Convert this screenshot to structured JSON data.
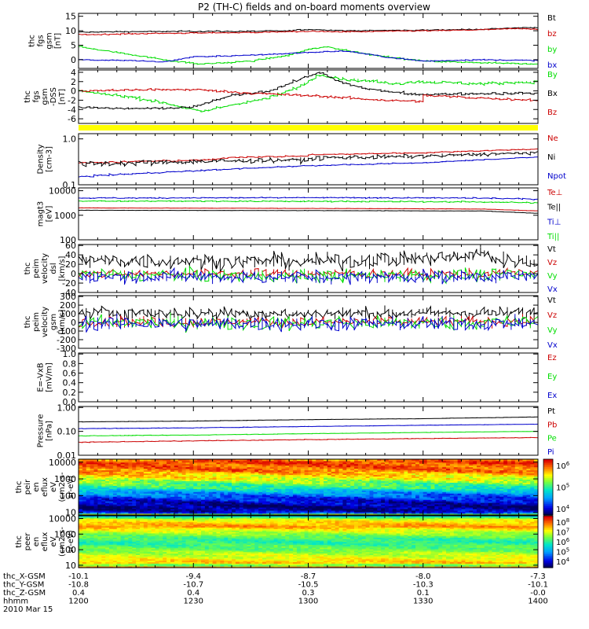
{
  "title": "P2 (TH-C) fields and on-board moments overview",
  "colors": {
    "black": "#000000",
    "red": "#cc0000",
    "green": "#00dd00",
    "blue": "#0000cc",
    "yellow": "#ffff00"
  },
  "chart_data": [
    {
      "type": "line",
      "ylabel": [
        "thc",
        "fgs",
        "gsm",
        "[nT]"
      ],
      "yscale": "linear",
      "ylim": [
        -3,
        16
      ],
      "ticks": [
        {
          "v": 15,
          "label": "15"
        },
        {
          "v": 10,
          "label": "10"
        },
        {
          "v": 5,
          "label": "5"
        },
        {
          "v": 0,
          "label": "0"
        }
      ],
      "series": [
        {
          "name": "Bt",
          "color": "#000000",
          "noise": 0.15,
          "x": [
            1200,
            1215,
            1230,
            1245,
            1255,
            1300,
            1310,
            1330,
            1345,
            1355,
            1400
          ],
          "y": [
            9.5,
            9.7,
            9.8,
            9.8,
            10,
            10.5,
            10,
            10.2,
            10.5,
            11,
            11
          ]
        },
        {
          "name": "bz",
          "color": "#cc0000",
          "noise": 0.15,
          "x": [
            1200,
            1215,
            1230,
            1245,
            1255,
            1300,
            1310,
            1330,
            1345,
            1355,
            1400
          ],
          "y": [
            8.6,
            9,
            9.2,
            9.4,
            9.7,
            9.8,
            9.6,
            10,
            10.3,
            10.8,
            10.5
          ]
        },
        {
          "name": "by",
          "color": "#00dd00",
          "noise": 0.2,
          "x": [
            1200,
            1205,
            1215,
            1225,
            1232,
            1245,
            1255,
            1300,
            1305,
            1315,
            1330,
            1345,
            1400
          ],
          "y": [
            4.5,
            3.5,
            1.5,
            -0.5,
            -1.5,
            -0.5,
            1.5,
            3.5,
            4.5,
            2,
            -0.5,
            -1,
            -1.5
          ]
        },
        {
          "name": "bx",
          "color": "#0000cc",
          "noise": 0.15,
          "x": [
            1200,
            1215,
            1222,
            1230,
            1245,
            1300,
            1310,
            1320,
            1330,
            1345,
            1400
          ],
          "y": [
            0,
            -0.3,
            -0.8,
            1,
            1.5,
            2.5,
            3,
            1,
            -0.5,
            0,
            -0.3
          ]
        }
      ]
    },
    {
      "type": "line",
      "ylabel": [
        "thc",
        "fgs",
        "gsm",
        "-DSS",
        "[nT]"
      ],
      "yscale": "linear",
      "ylim": [
        -7,
        4.5
      ],
      "ticks": [
        {
          "v": 4,
          "label": "4"
        },
        {
          "v": 2,
          "label": "2"
        },
        {
          "v": 0,
          "label": "0"
        },
        {
          "v": -2,
          "label": "-2"
        },
        {
          "v": -4,
          "label": "-4"
        },
        {
          "v": -6,
          "label": "-6"
        }
      ],
      "series": [
        {
          "name": "By",
          "color": "#00dd00",
          "noise": 0.25,
          "x": [
            1200,
            1205,
            1215,
            1225,
            1232,
            1240,
            1250,
            1258,
            1263,
            1270,
            1285,
            1300,
            1315,
            1330,
            1345,
            1400
          ],
          "y": [
            0,
            -0.5,
            -1.5,
            -3,
            -4.5,
            -3,
            -1.5,
            1,
            3.5,
            2.5,
            1.5,
            0.5,
            1.5,
            2,
            1.5,
            2
          ]
        },
        {
          "name": "Bx",
          "color": "#000000",
          "noise": 0.2,
          "x": [
            1200,
            1210,
            1220,
            1230,
            1240,
            1250,
            1258,
            1263,
            1268,
            1275,
            1285,
            1300,
            1315,
            1330,
            1400
          ],
          "y": [
            -3.5,
            -3.8,
            -3.8,
            -3.5,
            -1,
            0,
            2.5,
            4,
            2,
            0.5,
            -0.5,
            -1,
            -1,
            -0.7,
            -0.5
          ]
        },
        {
          "name": "Bz",
          "color": "#cc0000",
          "noise": 0.2,
          "x": [
            1200,
            1215,
            1230,
            1245,
            1260,
            1270,
            1280,
            1290,
            1300,
            1315,
            1330,
            1345,
            1400
          ],
          "y": [
            0,
            0.2,
            0.3,
            -0.5,
            -1,
            -1.5,
            -2,
            -2.3,
            -1.5,
            -1.5,
            -1,
            -1.5,
            -2
          ]
        }
      ]
    },
    {
      "type": "flag",
      "color": "#ffff00"
    },
    {
      "type": "line",
      "ylabel": [
        "Density",
        "[cm-3]"
      ],
      "yscale": "log",
      "ylim": [
        0.1,
        1.3
      ],
      "ticks": [
        {
          "v": 1.0,
          "label": "1.0"
        },
        {
          "v": 0.1,
          "label": "0.1"
        }
      ],
      "series": [
        {
          "name": "Ne",
          "color": "#cc0000",
          "noise": 0.01,
          "x": [
            1200,
            1215,
            1235,
            1240,
            1260,
            1300,
            1330,
            1400
          ],
          "y": [
            0.3,
            0.32,
            0.35,
            0.4,
            0.42,
            0.45,
            0.5,
            0.6
          ]
        },
        {
          "name": "Ni",
          "color": "#000000",
          "noise": 0.03,
          "x": [
            1200,
            1215,
            1230,
            1260,
            1300,
            1330,
            1400
          ],
          "y": [
            0.28,
            0.3,
            0.32,
            0.35,
            0.38,
            0.42,
            0.5
          ]
        },
        {
          "name": "Npot",
          "color": "#0000cc",
          "noise": 0.005,
          "x": [
            1200,
            1230,
            1300,
            1330,
            1400
          ],
          "y": [
            0.15,
            0.2,
            0.26,
            0.3,
            0.4
          ]
        }
      ]
    },
    {
      "type": "line",
      "ylabel": [
        "magt3",
        "[eV]"
      ],
      "yscale": "log",
      "ylim": [
        100,
        13000
      ],
      "ticks": [
        {
          "v": 10000,
          "label": "10000"
        },
        {
          "v": 1000,
          "label": "1000"
        },
        {
          "v": 100,
          "label": "100"
        }
      ],
      "series": [
        {
          "name": "Te⊥",
          "color": "#cc0000",
          "noise": 20,
          "x": [
            1200,
            1300,
            1345,
            1400
          ],
          "y": [
            2000,
            1900,
            1800,
            1500
          ]
        },
        {
          "name": "Te||",
          "color": "#000000",
          "noise": 15,
          "x": [
            1200,
            1300,
            1345,
            1400
          ],
          "y": [
            1600,
            1550,
            1500,
            1200
          ]
        },
        {
          "name": "Ti⊥",
          "color": "#0000cc",
          "noise": 200,
          "x": [
            1200,
            1300,
            1345,
            1400
          ],
          "y": [
            5000,
            5200,
            5000,
            4500
          ]
        },
        {
          "name": "Ti||",
          "color": "#00dd00",
          "noise": 150,
          "x": [
            1200,
            1300,
            1345,
            1400
          ],
          "y": [
            3800,
            3700,
            3500,
            3200
          ]
        }
      ]
    },
    {
      "type": "line",
      "ylabel": [
        "thc",
        "peim",
        "velocity",
        "dsl",
        "[km/s]"
      ],
      "yscale": "linear",
      "ylim": [
        -40,
        62
      ],
      "ticks": [
        {
          "v": 60,
          "label": "60"
        },
        {
          "v": 40,
          "label": "40"
        },
        {
          "v": 20,
          "label": "20"
        },
        {
          "v": 0,
          "label": "0"
        },
        {
          "v": -20,
          "label": "-20"
        },
        {
          "v": -40,
          "label": "-40"
        }
      ],
      "series": [
        {
          "name": "Vt",
          "color": "#000000",
          "noise": 12,
          "x": [
            1200,
            1300,
            1340,
            1345,
            1350,
            1400
          ],
          "y": [
            28,
            25,
            35,
            45,
            30,
            25
          ]
        },
        {
          "name": "Vz",
          "color": "#cc0000",
          "noise": 7,
          "x": [
            1200,
            1300,
            1400
          ],
          "y": [
            0,
            0,
            0
          ]
        },
        {
          "name": "Vy",
          "color": "#00dd00",
          "noise": 10,
          "x": [
            1200,
            1300,
            1400
          ],
          "y": [
            -2,
            -5,
            -3
          ]
        },
        {
          "name": "Vx",
          "color": "#0000cc",
          "noise": 10,
          "x": [
            1200,
            1300,
            1400
          ],
          "y": [
            -5,
            -8,
            -5
          ]
        }
      ]
    },
    {
      "type": "line",
      "ylabel": [
        "thc",
        "peim",
        "velocity",
        "gsm",
        "[km/s]"
      ],
      "yscale": "linear",
      "ylim": [
        -300,
        310
      ],
      "ticks": [
        {
          "v": 300,
          "label": "300"
        },
        {
          "v": 200,
          "label": "200"
        },
        {
          "v": 100,
          "label": "100"
        },
        {
          "v": 0,
          "label": "0"
        },
        {
          "v": -100,
          "label": "-100"
        },
        {
          "v": -200,
          "label": "-200"
        },
        {
          "v": -300,
          "label": "-300"
        }
      ],
      "series": [
        {
          "name": "Vt",
          "color": "#000000",
          "noise": 55,
          "x": [
            1200,
            1300,
            1400
          ],
          "y": [
            110,
            100,
            110
          ]
        },
        {
          "name": "Vz",
          "color": "#cc0000",
          "noise": 45,
          "x": [
            1200,
            1300,
            1400
          ],
          "y": [
            10,
            0,
            10
          ]
        },
        {
          "name": "Vy",
          "color": "#00dd00",
          "noise": 60,
          "x": [
            1200,
            1300,
            1400
          ],
          "y": [
            0,
            -10,
            0
          ]
        },
        {
          "name": "Vx",
          "color": "#0000cc",
          "noise": 60,
          "x": [
            1200,
            1300,
            1400
          ],
          "y": [
            -10,
            -20,
            -10
          ]
        }
      ]
    },
    {
      "type": "line",
      "ylabel": [
        "E=-VxB",
        "[mV/m]"
      ],
      "yscale": "linear",
      "ylim": [
        0,
        1.02
      ],
      "ticks": [
        {
          "v": 1.0,
          "label": "1.0"
        },
        {
          "v": 0.8,
          "label": "0.8"
        },
        {
          "v": 0.6,
          "label": "0.6"
        },
        {
          "v": 0.4,
          "label": "0.4"
        },
        {
          "v": 0.2,
          "label": "0.2"
        },
        {
          "v": 0.0,
          "label": "0.0"
        }
      ],
      "series": [
        {
          "name": "Ez",
          "color": "#cc0000",
          "noise": 0,
          "x": [],
          "y": []
        },
        {
          "name": "Ey",
          "color": "#00dd00",
          "noise": 0,
          "x": [],
          "y": []
        },
        {
          "name": "Ex",
          "color": "#0000cc",
          "noise": 0,
          "x": [],
          "y": []
        }
      ]
    },
    {
      "type": "line",
      "ylabel": [
        "Pressure",
        "[nPa]"
      ],
      "yscale": "log",
      "ylim": [
        0.01,
        1.1
      ],
      "ticks": [
        {
          "v": 1.0,
          "label": "1.00"
        },
        {
          "v": 0.1,
          "label": "0.10"
        },
        {
          "v": 0.01,
          "label": "0.01"
        }
      ],
      "series": [
        {
          "name": "Pt",
          "color": "#000000",
          "noise": 0.003,
          "x": [
            1200,
            1230,
            1300,
            1330,
            1400
          ],
          "y": [
            0.25,
            0.27,
            0.31,
            0.34,
            0.4
          ]
        },
        {
          "name": "Pb",
          "color": "#cc0000",
          "noise": 0.0008,
          "x": [
            1200,
            1230,
            1300,
            1330,
            1400
          ],
          "y": [
            0.035,
            0.04,
            0.045,
            0.05,
            0.055
          ]
        },
        {
          "name": "Pe",
          "color": "#00dd00",
          "noise": 0.001,
          "x": [
            1200,
            1230,
            1300,
            1330,
            1400
          ],
          "y": [
            0.065,
            0.07,
            0.08,
            0.09,
            0.1
          ]
        },
        {
          "name": "Pi",
          "color": "#0000cc",
          "noise": 0.002,
          "x": [
            1200,
            1230,
            1300,
            1330,
            1400
          ],
          "y": [
            0.13,
            0.14,
            0.16,
            0.18,
            0.2
          ]
        }
      ]
    },
    {
      "type": "heatmap",
      "ylabel": [
        "thc",
        "peir",
        "en",
        "eflux",
        "eV",
        "(cm2-s-",
        "sr-eV)"
      ],
      "yscale": "log",
      "ylim": [
        7,
        15000
      ],
      "ticks": [
        {
          "v": 10000,
          "label": "10000"
        },
        {
          "v": 1000,
          "label": "1000"
        },
        {
          "v": 100,
          "label": "100"
        },
        {
          "v": 10,
          "label": "10"
        }
      ],
      "colorbar": {
        "labels": [
          {
            "exp": "6"
          },
          {
            "exp": "5"
          },
          {
            "exp": "4"
          }
        ],
        "range": [
          3.5,
          6.5
        ]
      },
      "profile": {
        "e": [
          7,
          10,
          20,
          40,
          100,
          300,
          1000,
          3000,
          10000,
          15000
        ],
        "v": [
          5.8,
          3.8,
          3.6,
          3.8,
          4.2,
          5.0,
          5.6,
          6.1,
          6.3,
          6.0
        ]
      }
    },
    {
      "type": "heatmap",
      "ylabel": [
        "thc",
        "peer",
        "en",
        "eflux",
        "eV",
        "(cm2-s-",
        "sr-eV)"
      ],
      "yscale": "log",
      "ylim": [
        7,
        15000
      ],
      "ticks": [
        {
          "v": 10000,
          "label": "10000"
        },
        {
          "v": 1000,
          "label": "1000"
        },
        {
          "v": 100,
          "label": "100"
        },
        {
          "v": 10,
          "label": "10"
        }
      ],
      "colorbar": {
        "labels": [
          {
            "exp": "8"
          },
          {
            "exp": "7"
          },
          {
            "exp": "6"
          },
          {
            "exp": "5"
          },
          {
            "exp": "4"
          }
        ],
        "range": [
          3.5,
          8.2
        ]
      },
      "profile": {
        "e": [
          7,
          10,
          15,
          30,
          100,
          300,
          1000,
          3000,
          10000,
          15000
        ],
        "v": [
          8.0,
          6.0,
          7.2,
          6.8,
          6.2,
          5.8,
          6.4,
          7.4,
          6.6,
          5.0
        ]
      }
    }
  ],
  "time_axis": {
    "range": [
      1200,
      1400
    ],
    "ticks": [
      1200,
      1230,
      1300,
      1330,
      1400
    ],
    "minor": 6,
    "rows": [
      {
        "label": "thc_X-GSM",
        "values": [
          "-10.1",
          "-9.4",
          "-8.7",
          "-8.0",
          "-7.3"
        ]
      },
      {
        "label": "thc_Y-GSM",
        "values": [
          "-10.8",
          "-10.7",
          "-10.5",
          "-10.3",
          "-10.1"
        ]
      },
      {
        "label": "thc_Z-GSM",
        "values": [
          "0.4",
          "0.4",
          "0.3",
          "0.1",
          "-0.0"
        ]
      },
      {
        "label": "hhmm",
        "values": [
          "1200",
          "1230",
          "1300",
          "1330",
          "1400"
        ]
      }
    ],
    "date": "2010 Mar 15"
  }
}
